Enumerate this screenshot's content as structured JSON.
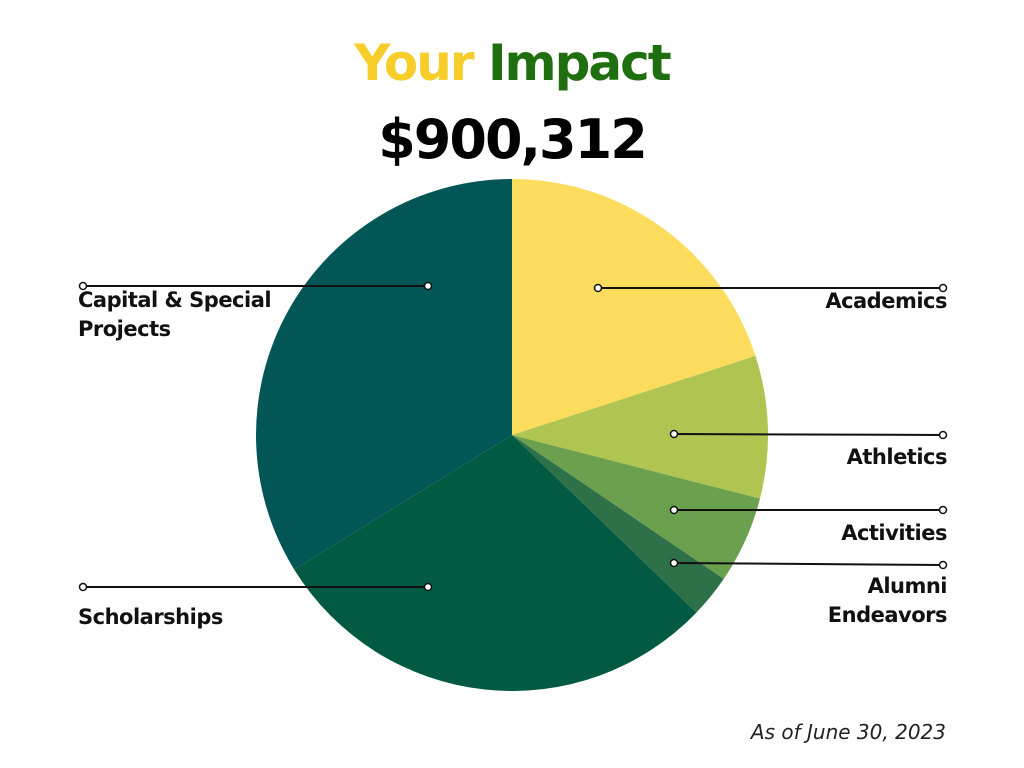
{
  "chart_data": {
    "type": "pie",
    "title": [
      "Your",
      "Impact"
    ],
    "title_colors": [
      "#f7cd2a",
      "#1f6e0f"
    ],
    "subtitle": "$900,312",
    "note": "As of June 30, 2023",
    "categories": [
      "Academics",
      "Athletics",
      "Activities",
      "Alumni Endeavors",
      "Scholarships",
      "Capital & Special Projects"
    ],
    "values": [
      20,
      9,
      5.5,
      2.7,
      29,
      33.8
    ],
    "colors": [
      "#fcdc5c",
      "#b0c452",
      "#6aa04e",
      "#2e7048",
      "#025a42",
      "#035656"
    ]
  }
}
